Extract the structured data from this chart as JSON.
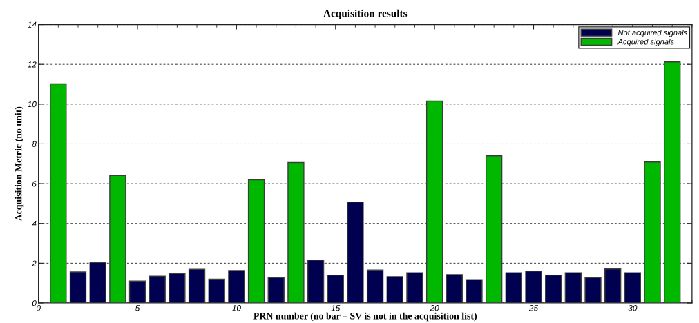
{
  "chart_data": {
    "type": "bar",
    "title": "Acquisition results",
    "xlabel": "PRN number (no bar – SV is not in the acquisition list)",
    "ylabel": "Acquisition Metric (no unit)",
    "x": [
      1,
      2,
      3,
      4,
      5,
      6,
      7,
      8,
      9,
      10,
      11,
      12,
      13,
      14,
      15,
      16,
      17,
      18,
      19,
      20,
      21,
      22,
      23,
      24,
      25,
      26,
      27,
      28,
      29,
      30,
      31,
      32
    ],
    "series": [
      {
        "name": "Not acquired signals",
        "color": "#000050",
        "values": [
          null,
          1.56,
          2.04,
          null,
          1.1,
          1.35,
          1.48,
          1.69,
          1.2,
          1.63,
          null,
          1.27,
          null,
          2.16,
          1.4,
          5.08,
          1.66,
          1.32,
          1.52,
          null,
          1.42,
          1.17,
          null,
          1.52,
          1.6,
          1.4,
          1.52,
          1.27,
          1.71,
          1.52,
          null,
          null
        ]
      },
      {
        "name": "Acquired signals",
        "color": "#00b800",
        "values": [
          11.02,
          null,
          null,
          6.41,
          null,
          null,
          null,
          null,
          null,
          null,
          6.19,
          null,
          7.06,
          null,
          null,
          null,
          null,
          null,
          null,
          10.15,
          null,
          null,
          7.4,
          null,
          null,
          null,
          null,
          null,
          null,
          null,
          7.09,
          12.12
        ]
      }
    ],
    "xlim": [
      0,
      33
    ],
    "xticks": [
      0,
      {
        "value": 1,
        "label": null
      },
      {
        "value": 2,
        "label": null
      },
      {
        "value": 3,
        "label": null
      },
      {
        "value": 4,
        "label": null
      },
      5,
      {
        "value": 6,
        "label": null
      },
      {
        "value": 7,
        "label": null
      },
      {
        "value": 8,
        "label": null
      },
      {
        "value": 9,
        "label": null
      },
      10,
      {
        "value": 11,
        "label": null
      },
      {
        "value": 12,
        "label": null
      },
      {
        "value": 13,
        "label": null
      },
      {
        "value": 14,
        "label": null
      },
      15,
      {
        "value": 16,
        "label": null
      },
      {
        "value": 17,
        "label": null
      },
      {
        "value": 18,
        "label": null
      },
      {
        "value": 19,
        "label": null
      },
      20,
      {
        "value": 21,
        "label": null
      },
      {
        "value": 22,
        "label": null
      },
      {
        "value": 23,
        "label": null
      },
      {
        "value": 24,
        "label": null
      },
      25,
      {
        "value": 26,
        "label": null
      },
      {
        "value": 27,
        "label": null
      },
      {
        "value": 28,
        "label": null
      },
      {
        "value": 29,
        "label": null
      },
      30,
      {
        "value": 31,
        "label": null
      },
      {
        "value": 32,
        "label": null
      },
      {
        "value": 33,
        "label": null
      }
    ],
    "ylim": [
      0,
      14
    ],
    "yticks": [
      0,
      2,
      4,
      6,
      8,
      10,
      12,
      14
    ],
    "grid": "y",
    "legend": "top right"
  }
}
